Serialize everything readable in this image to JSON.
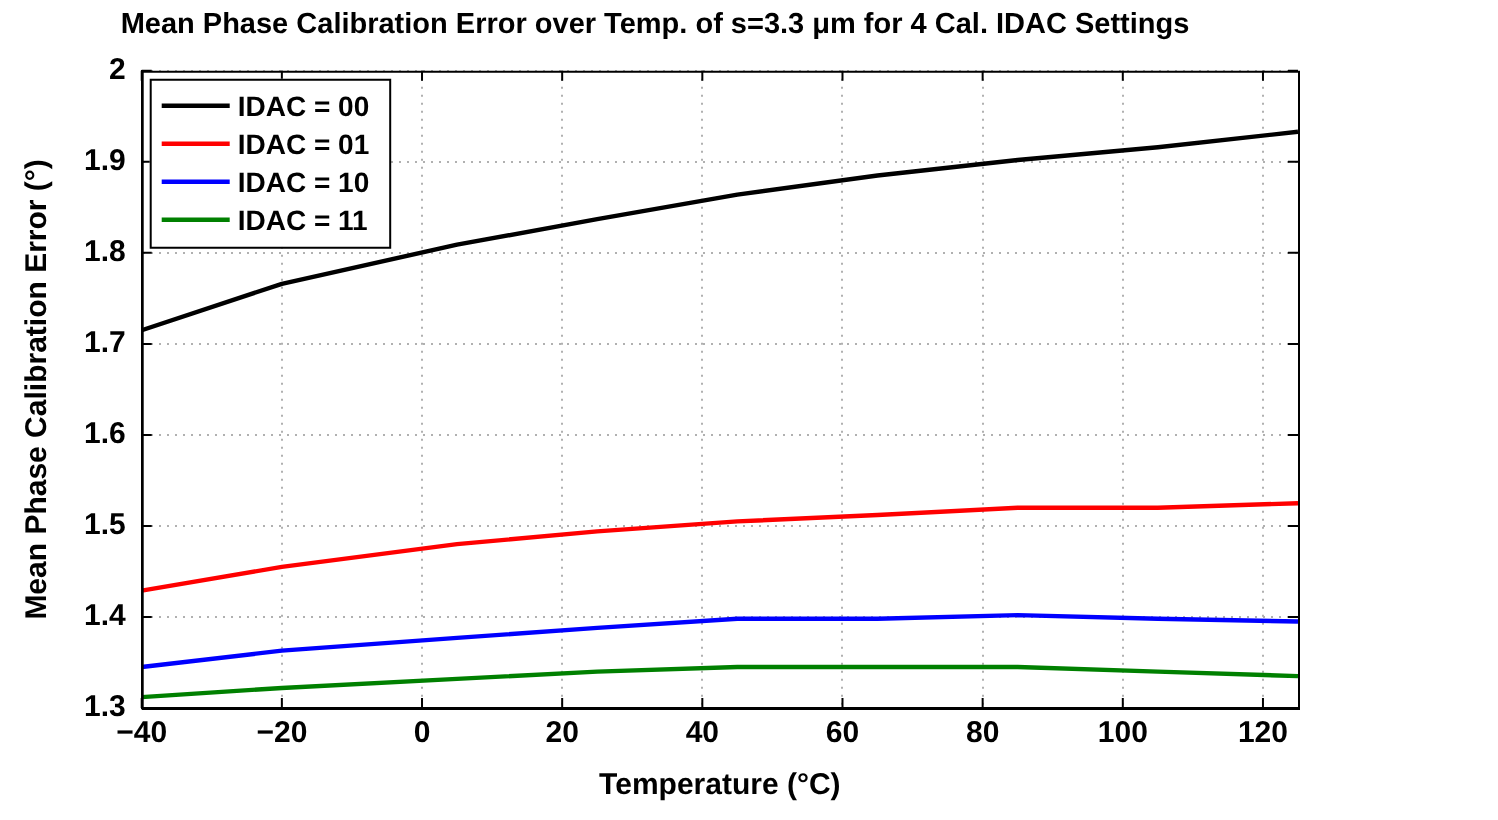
{
  "chart_data": {
    "type": "line",
    "title": "Mean Phase Calibration Error over Temp. of s=3.3 μm for 4 Cal. IDAC Settings",
    "xlabel": "Temperature (°C)",
    "ylabel": "Mean Phase Calibration Error (°)",
    "x": [
      -40,
      -20,
      5,
      25,
      45,
      65,
      85,
      105,
      125
    ],
    "series": [
      {
        "name": "IDAC = 00",
        "color": "#000000",
        "values": [
          1.715,
          1.766,
          1.809,
          1.837,
          1.864,
          1.885,
          1.902,
          1.916,
          1.933
        ]
      },
      {
        "name": "IDAC = 01",
        "color": "#ff0000",
        "values": [
          1.429,
          1.455,
          1.48,
          1.494,
          1.505,
          1.512,
          1.52,
          1.52,
          1.525
        ]
      },
      {
        "name": "IDAC = 10",
        "color": "#0000ff",
        "values": [
          1.345,
          1.363,
          1.377,
          1.388,
          1.398,
          1.398,
          1.402,
          1.398,
          1.395
        ]
      },
      {
        "name": "IDAC = 11",
        "color": "#008000",
        "values": [
          1.312,
          1.322,
          1.332,
          1.34,
          1.345,
          1.345,
          1.345,
          1.34,
          1.335
        ]
      }
    ],
    "xlim": [
      -40,
      125
    ],
    "xticks": [
      -40,
      -20,
      0,
      20,
      40,
      60,
      80,
      100,
      120
    ],
    "ylim": [
      1.3,
      2
    ],
    "yticks": [
      1.3,
      1.4,
      1.5,
      1.6,
      1.7,
      1.8,
      1.9,
      2
    ],
    "grid": true,
    "legend": "top left",
    "marker": "none",
    "line_style": "solid"
  }
}
